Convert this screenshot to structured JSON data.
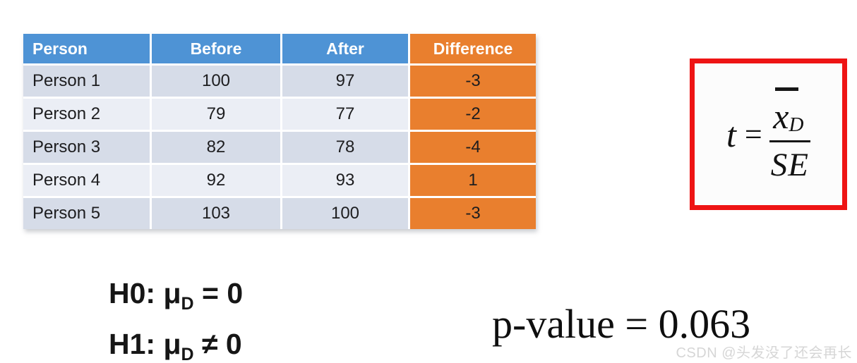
{
  "table": {
    "headers": [
      "Person",
      "Before",
      "After",
      "Difference"
    ],
    "rows": [
      [
        "Person 1",
        "100",
        "97",
        "-3"
      ],
      [
        "Person 2",
        "79",
        "77",
        "-2"
      ],
      [
        "Person 3",
        "82",
        "78",
        "-4"
      ],
      [
        "Person 4",
        "92",
        "93",
        "1"
      ],
      [
        "Person 5",
        "103",
        "100",
        "-3"
      ]
    ]
  },
  "chart_data": {
    "type": "table",
    "columns": [
      "Person",
      "Before",
      "After",
      "Difference"
    ],
    "rows": [
      [
        "Person 1",
        100,
        97,
        -3
      ],
      [
        "Person 2",
        79,
        77,
        -2
      ],
      [
        "Person 3",
        82,
        78,
        -4
      ],
      [
        "Person 4",
        92,
        93,
        1
      ],
      [
        "Person 5",
        103,
        100,
        -3
      ]
    ]
  },
  "formula": {
    "lhs": "t",
    "equals": "=",
    "numerator_base": "x",
    "numerator_sub": "D",
    "denominator": "SE"
  },
  "hypotheses": {
    "h0_prefix": "H0: μ",
    "h0_sub": "D",
    "h0_suffix": " = 0",
    "h1_prefix": "H1: μ",
    "h1_sub": "D",
    "h1_suffix": " ≠ 0"
  },
  "p_value_text": "p-value = 0.063",
  "watermark": "CSDN @头发没了还会再长",
  "colors": {
    "header_blue": "#4E93D5",
    "accent_orange": "#E97F2E",
    "row_shaded": "#D6DCE8",
    "row_light": "#EBEEF5",
    "formula_border_red": "#EE1414",
    "watermark_gray": "#D6D6D6",
    "text_dark": "#1d1d1f"
  }
}
